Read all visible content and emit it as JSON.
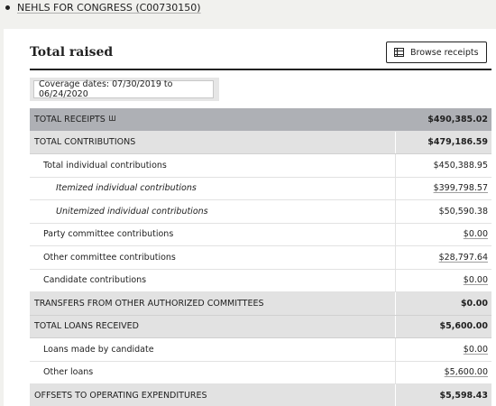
{
  "breadcrumb": {
    "committee_link": "NEHLS FOR CONGRESS (C00730150)"
  },
  "section": {
    "title": "Total raised",
    "browse_label": "Browse receipts",
    "coverage": "Coverage dates: 07/30/2019 to 06/24/2020"
  },
  "rows": [
    {
      "label": "TOTAL RECEIPTS",
      "value": "$490,385.02"
    },
    {
      "label": "TOTAL CONTRIBUTIONS",
      "value": "$479,186.59"
    },
    {
      "label": "Total individual contributions",
      "value": "$450,388.95"
    },
    {
      "label": "Itemized individual contributions",
      "value": "$399,798.57"
    },
    {
      "label": "Unitemized individual contributions",
      "value": "$50,590.38"
    },
    {
      "label": "Party committee contributions",
      "value": "$0.00"
    },
    {
      "label": "Other committee contributions",
      "value": "$28,797.64"
    },
    {
      "label": "Candidate contributions",
      "value": "$0.00"
    },
    {
      "label": "TRANSFERS FROM OTHER AUTHORIZED COMMITTEES",
      "value": "$0.00"
    },
    {
      "label": "TOTAL LOANS RECEIVED",
      "value": "$5,600.00"
    },
    {
      "label": "Loans made by candidate",
      "value": "$0.00"
    },
    {
      "label": "Other loans",
      "value": "$5,600.00"
    },
    {
      "label": "OFFSETS TO OPERATING EXPENDITURES",
      "value": "$5,598.43"
    }
  ],
  "icons": {
    "glossary": "book-icon",
    "browse": "table-icon"
  }
}
